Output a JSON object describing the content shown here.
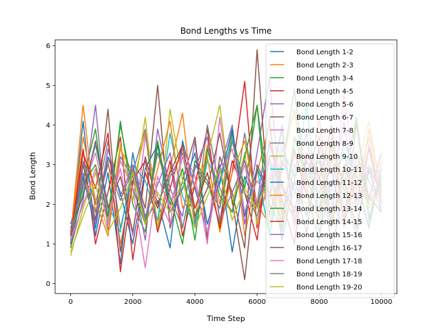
{
  "chart_data": {
    "type": "line",
    "title": "Bond Lengths vs Time",
    "xlabel": "Time Step",
    "ylabel": "Bond Length",
    "xlim": [
      -500,
      10500
    ],
    "ylim": [
      -0.25,
      6.15
    ],
    "xticks": [
      0,
      2000,
      4000,
      6000,
      8000,
      10000
    ],
    "yticks": [
      0,
      1,
      2,
      3,
      4,
      5,
      6
    ],
    "grid": false,
    "legend_position": "top-right",
    "series": [
      {
        "name": "Bond Length 1-2",
        "color": "#1f77b4",
        "x": [
          0,
          400,
          800,
          1200,
          1600,
          2000,
          2400,
          2800,
          3200,
          3600,
          4000,
          4400,
          4800,
          5200,
          5600,
          6000,
          6400,
          6800,
          7200,
          7600,
          8000,
          8400,
          8800,
          9200,
          9600,
          10000
        ],
        "y": [
          1.0,
          4.1,
          1.2,
          2.8,
          0.5,
          3.3,
          1.6,
          2.1,
          0.9,
          3.6,
          2.4,
          1.3,
          3.0,
          0.8,
          2.7,
          1.9,
          3.2,
          1.1,
          2.6,
          1.7,
          3.4,
          0.9,
          2.3,
          1.5,
          2.9,
          1.8
        ]
      },
      {
        "name": "Bond Length 2-3",
        "color": "#ff7f0e",
        "x": [
          0,
          400,
          800,
          1200,
          1600,
          2000,
          2400,
          2800,
          3200,
          3600,
          4000,
          4400,
          4800,
          5200,
          5600,
          6000,
          6400,
          6800,
          7200,
          7600,
          8000,
          8400,
          8800,
          9200,
          9600,
          10000
        ],
        "y": [
          1.2,
          4.5,
          1.8,
          3.1,
          1.0,
          2.5,
          3.8,
          1.4,
          2.9,
          4.3,
          1.6,
          3.5,
          2.0,
          3.9,
          1.2,
          2.8,
          4.0,
          1.7,
          3.3,
          2.2,
          4.2,
          1.4,
          3.0,
          2.4,
          3.7,
          2.1
        ]
      },
      {
        "name": "Bond Length 3-4",
        "color": "#2ca02c",
        "x": [
          0,
          400,
          800,
          1200,
          1600,
          2000,
          2400,
          2800,
          3200,
          3600,
          4000,
          4400,
          4800,
          5200,
          5600,
          6000,
          6400,
          6800,
          7200,
          7600,
          8000,
          8400,
          8800,
          9200,
          9600,
          10000
        ],
        "y": [
          1.1,
          2.6,
          3.9,
          1.5,
          4.1,
          2.0,
          1.3,
          3.5,
          2.2,
          1.0,
          3.1,
          2.6,
          1.5,
          3.8,
          2.4,
          4.5,
          1.2,
          2.9,
          4.9,
          2.3,
          1.1,
          3.6,
          2.5,
          4.1,
          1.6,
          2.7
        ]
      },
      {
        "name": "Bond Length 4-5",
        "color": "#d62728",
        "x": [
          0,
          400,
          800,
          1200,
          1600,
          2000,
          2400,
          2800,
          3200,
          3600,
          4000,
          4400,
          4800,
          5200,
          5600,
          6000,
          6400,
          6800,
          7200,
          7600,
          8000,
          8400,
          8800,
          9200,
          9600,
          10000
        ],
        "y": [
          1.3,
          3.4,
          1.0,
          2.3,
          3.7,
          0.6,
          2.8,
          1.9,
          3.1,
          1.2,
          2.5,
          3.9,
          1.6,
          2.8,
          5.1,
          1.4,
          3.6,
          2.1,
          1.0,
          3.3,
          2.6,
          4.0,
          1.5,
          3.0,
          2.2,
          1.8
        ]
      },
      {
        "name": "Bond Length 5-6",
        "color": "#9467bd",
        "x": [
          0,
          400,
          800,
          1200,
          1600,
          2000,
          2400,
          2800,
          3200,
          3600,
          4000,
          4400,
          4800,
          5200,
          5600,
          6000,
          6400,
          6800,
          7200,
          7600,
          8000,
          8400,
          8800,
          9200,
          9600,
          10000
        ],
        "y": [
          0.9,
          2.1,
          4.5,
          1.3,
          3.2,
          2.7,
          1.1,
          3.9,
          2.4,
          1.7,
          3.6,
          1.2,
          2.9,
          4.0,
          1.5,
          3.3,
          5.2,
          1.8,
          2.6,
          3.8,
          1.3,
          2.4,
          4.1,
          1.9,
          3.0,
          2.5
        ]
      },
      {
        "name": "Bond Length 6-7",
        "color": "#8c564b",
        "x": [
          0,
          400,
          800,
          1200,
          1600,
          2000,
          2400,
          2800,
          3200,
          3600,
          4000,
          4400,
          4800,
          5200,
          5600,
          6000,
          6400,
          6800,
          7200,
          7600,
          8000,
          8400,
          8800,
          9200,
          9600,
          10000
        ],
        "y": [
          1.0,
          3.0,
          1.6,
          4.4,
          0.8,
          2.9,
          1.9,
          5.0,
          1.4,
          2.6,
          3.7,
          1.1,
          3.2,
          2.3,
          0.9,
          5.9,
          1.7,
          3.1,
          2.4,
          1.3,
          3.5,
          2.8,
          1.6,
          4.0,
          2.1,
          3.3
        ]
      },
      {
        "name": "Bond Length 7-8",
        "color": "#e377c2",
        "x": [
          0,
          400,
          800,
          1200,
          1600,
          2000,
          2400,
          2800,
          3200,
          3600,
          4000,
          4400,
          4800,
          5200,
          5600,
          6000,
          6400,
          6800,
          7200,
          7600,
          8000,
          8400,
          8800,
          9200,
          9600,
          10000
        ],
        "y": [
          1.4,
          2.4,
          3.3,
          1.8,
          2.9,
          1.2,
          3.7,
          2.2,
          1.5,
          3.4,
          2.7,
          1.0,
          4.2,
          2.0,
          3.0,
          1.6,
          2.5,
          3.9,
          1.4,
          2.8,
          3.3,
          1.7,
          4.8,
          2.2,
          1.5,
          3.1
        ]
      },
      {
        "name": "Bond Length 8-9",
        "color": "#7f7f7f",
        "x": [
          0,
          400,
          800,
          1200,
          1600,
          2000,
          2400,
          2800,
          3200,
          3600,
          4000,
          4400,
          4800,
          5200,
          5600,
          6000,
          6400,
          6800,
          7200,
          7600,
          8000,
          8400,
          8800,
          9200,
          9600,
          10000
        ],
        "y": [
          1.2,
          3.1,
          2.0,
          3.6,
          1.4,
          2.8,
          3.9,
          1.3,
          2.7,
          3.3,
          1.5,
          4.0,
          2.4,
          1.8,
          3.8,
          2.0,
          4.2,
          1.3,
          3.0,
          2.6,
          1.9,
          3.7,
          2.4,
          1.2,
          3.5,
          2.2
        ]
      },
      {
        "name": "Bond Length 9-10",
        "color": "#bcbd22",
        "x": [
          0,
          400,
          800,
          1200,
          1600,
          2000,
          2400,
          2800,
          3200,
          3600,
          4000,
          4400,
          4800,
          5200,
          5600,
          6000,
          6400,
          6800,
          7200,
          7600,
          8000,
          8400,
          8800,
          9200,
          9600,
          10000
        ],
        "y": [
          0.7,
          1.9,
          2.8,
          1.5,
          3.5,
          2.1,
          4.2,
          1.4,
          4.4,
          2.6,
          1.7,
          3.2,
          4.5,
          2.0,
          3.3,
          1.5,
          2.7,
          3.8,
          1.6,
          2.9,
          2.2,
          3.6,
          1.4,
          2.8,
          4.1,
          2.3
        ]
      },
      {
        "name": "Bond Length 10-11",
        "color": "#17becf",
        "x": [
          0,
          400,
          800,
          1200,
          1600,
          2000,
          2400,
          2800,
          3200,
          3600,
          4000,
          4400,
          4800,
          5200,
          5600,
          6000,
          6400,
          6800,
          7200,
          7600,
          8000,
          8400,
          8800,
          9200,
          9600,
          10000
        ],
        "y": [
          1.1,
          2.3,
          3.5,
          2.0,
          1.3,
          3.0,
          2.6,
          1.6,
          3.8,
          2.2,
          1.4,
          3.1,
          2.5,
          3.7,
          1.8,
          2.9,
          1.2,
          3.4,
          2.7,
          4.5,
          1.6,
          2.6,
          3.3,
          1.9,
          2.8,
          2.4
        ]
      },
      {
        "name": "Bond Length 11-12",
        "color": "#1f77b4",
        "x": [
          0,
          400,
          800,
          1200,
          1600,
          2000,
          2400,
          2800,
          3200,
          3600,
          4000,
          4400,
          4800,
          5200,
          5600,
          6000,
          6400,
          6800,
          7200,
          7600,
          8000,
          8400,
          8800,
          9200,
          9600,
          10000
        ],
        "y": [
          1.5,
          2.7,
          1.4,
          3.2,
          2.3,
          1.0,
          2.9,
          3.5,
          1.8,
          2.4,
          3.3,
          1.5,
          2.6,
          3.9,
          1.7,
          2.9,
          2.2,
          4.0,
          1.5,
          3.1,
          2.5,
          1.8,
          3.6,
          2.7,
          1.4,
          2.9
        ]
      },
      {
        "name": "Bond Length 12-13",
        "color": "#ff7f0e",
        "x": [
          0,
          400,
          800,
          1200,
          1600,
          2000,
          2400,
          2800,
          3200,
          3600,
          4000,
          4400,
          4800,
          5200,
          5600,
          6000,
          6400,
          6800,
          7200,
          7600,
          8000,
          8400,
          8800,
          9200,
          9600,
          10000
        ],
        "y": [
          1.3,
          3.7,
          2.1,
          1.2,
          3.4,
          2.8,
          1.6,
          2.9,
          4.1,
          1.9,
          2.5,
          3.2,
          1.3,
          2.8,
          3.6,
          2.0,
          1.5,
          3.0,
          4.4,
          2.3,
          1.6,
          3.4,
          2.6,
          1.8,
          3.9,
          2.4
        ]
      },
      {
        "name": "Bond Length 13-14",
        "color": "#2ca02c",
        "x": [
          0,
          400,
          800,
          1200,
          1600,
          2000,
          2400,
          2800,
          3200,
          3600,
          4000,
          4400,
          4800,
          5200,
          5600,
          6000,
          6400,
          6800,
          7200,
          7600,
          8000,
          8400,
          8800,
          9200,
          9600,
          10000
        ],
        "y": [
          0.9,
          2.5,
          3.0,
          1.7,
          4.0,
          2.4,
          1.5,
          3.6,
          2.0,
          2.9,
          1.1,
          3.4,
          2.2,
          1.8,
          3.2,
          4.5,
          2.0,
          1.4,
          3.7,
          2.6,
          3.1,
          1.5,
          2.8,
          4.2,
          1.7,
          2.6
        ]
      },
      {
        "name": "Bond Length 14-15",
        "color": "#d62728",
        "x": [
          0,
          400,
          800,
          1200,
          1600,
          2000,
          2400,
          2800,
          3200,
          3600,
          4000,
          4400,
          4800,
          5200,
          5600,
          6000,
          6400,
          6800,
          7200,
          7600,
          8000,
          8400,
          8800,
          9200,
          9600,
          10000
        ],
        "y": [
          1.2,
          3.3,
          2.4,
          3.8,
          0.3,
          2.6,
          3.1,
          1.3,
          2.4,
          3.5,
          1.9,
          2.8,
          1.4,
          3.1,
          2.3,
          1.1,
          3.6,
          2.5,
          1.8,
          3.3,
          2.7,
          1.5,
          3.0,
          2.1,
          3.4,
          2.0
        ]
      },
      {
        "name": "Bond Length 15-16",
        "color": "#9467bd",
        "x": [
          0,
          400,
          800,
          1200,
          1600,
          2000,
          2400,
          2800,
          3200,
          3600,
          4000,
          4400,
          4800,
          5200,
          5600,
          6000,
          6400,
          6800,
          7200,
          7600,
          8000,
          8400,
          8800,
          9200,
          9600,
          10000
        ],
        "y": [
          1.0,
          2.8,
          1.5,
          3.4,
          2.2,
          3.0,
          1.7,
          2.5,
          3.3,
          1.4,
          2.9,
          3.7,
          1.6,
          2.3,
          3.1,
          1.9,
          3.5,
          2.4,
          1.6,
          2.8,
          3.7,
          2.0,
          1.5,
          3.2,
          2.6,
          1.9
        ]
      },
      {
        "name": "Bond Length 16-17",
        "color": "#8c564b",
        "x": [
          0,
          400,
          800,
          1200,
          1600,
          2000,
          2400,
          2800,
          3200,
          3600,
          4000,
          4400,
          4800,
          5200,
          5600,
          6000,
          6400,
          6800,
          7200,
          7600,
          8000,
          8400,
          8800,
          9200,
          9600,
          10000
        ],
        "y": [
          1.4,
          2.2,
          3.6,
          1.9,
          2.7,
          1.3,
          3.2,
          2.0,
          2.8,
          3.5,
          1.7,
          2.4,
          3.8,
          2.1,
          0.1,
          3.0,
          2.3,
          1.6,
          3.4,
          2.2,
          1.8,
          3.1,
          2.6,
          1.4,
          2.9,
          2.3
        ]
      },
      {
        "name": "Bond Length 17-18",
        "color": "#e377c2",
        "x": [
          0,
          400,
          800,
          1200,
          1600,
          2000,
          2400,
          2800,
          3200,
          3600,
          4000,
          4400,
          4800,
          5200,
          5600,
          6000,
          6400,
          6800,
          7200,
          7600,
          8000,
          8400,
          8800,
          9200,
          9600,
          10000
        ],
        "y": [
          1.1,
          2.0,
          2.9,
          1.5,
          3.1,
          2.4,
          0.4,
          2.7,
          1.9,
          3.2,
          2.5,
          1.3,
          2.8,
          3.4,
          1.8,
          2.6,
          2.1,
          3.6,
          1.5,
          2.9,
          2.3,
          3.2,
          1.7,
          2.5,
          3.0,
          2.2
        ]
      },
      {
        "name": "Bond Length 18-19",
        "color": "#7f7f7f",
        "x": [
          0,
          400,
          800,
          1200,
          1600,
          2000,
          2400,
          2800,
          3200,
          3600,
          4000,
          4400,
          4800,
          5200,
          5600,
          6000,
          6400,
          6800,
          7200,
          7600,
          8000,
          8400,
          8800,
          9200,
          9600,
          10000
        ],
        "y": [
          1.3,
          2.6,
          1.8,
          3.0,
          2.1,
          2.9,
          1.6,
          3.3,
          2.2,
          1.4,
          3.0,
          2.5,
          1.9,
          3.6,
          2.3,
          1.7,
          3.1,
          2.4,
          1.9,
          2.7,
          3.2,
          1.6,
          2.5,
          3.3,
          2.0,
          2.6
        ]
      },
      {
        "name": "Bond Length 19-20",
        "color": "#bcbd22",
        "x": [
          0,
          400,
          800,
          1200,
          1600,
          2000,
          2400,
          2800,
          3200,
          3600,
          4000,
          4400,
          4800,
          5200,
          5600,
          6000,
          6400,
          6800,
          7200,
          7600,
          8000,
          8400,
          8800,
          9200,
          9600,
          10000
        ],
        "y": [
          0.8,
          1.7,
          2.5,
          1.3,
          1.9,
          2.8,
          1.5,
          2.3,
          1.8,
          2.6,
          1.4,
          2.2,
          2.9,
          1.6,
          2.4,
          1.9,
          2.7,
          1.5,
          2.3,
          2.0,
          2.6,
          1.7,
          2.2,
          2.8,
          1.9,
          2.4
        ]
      }
    ]
  }
}
